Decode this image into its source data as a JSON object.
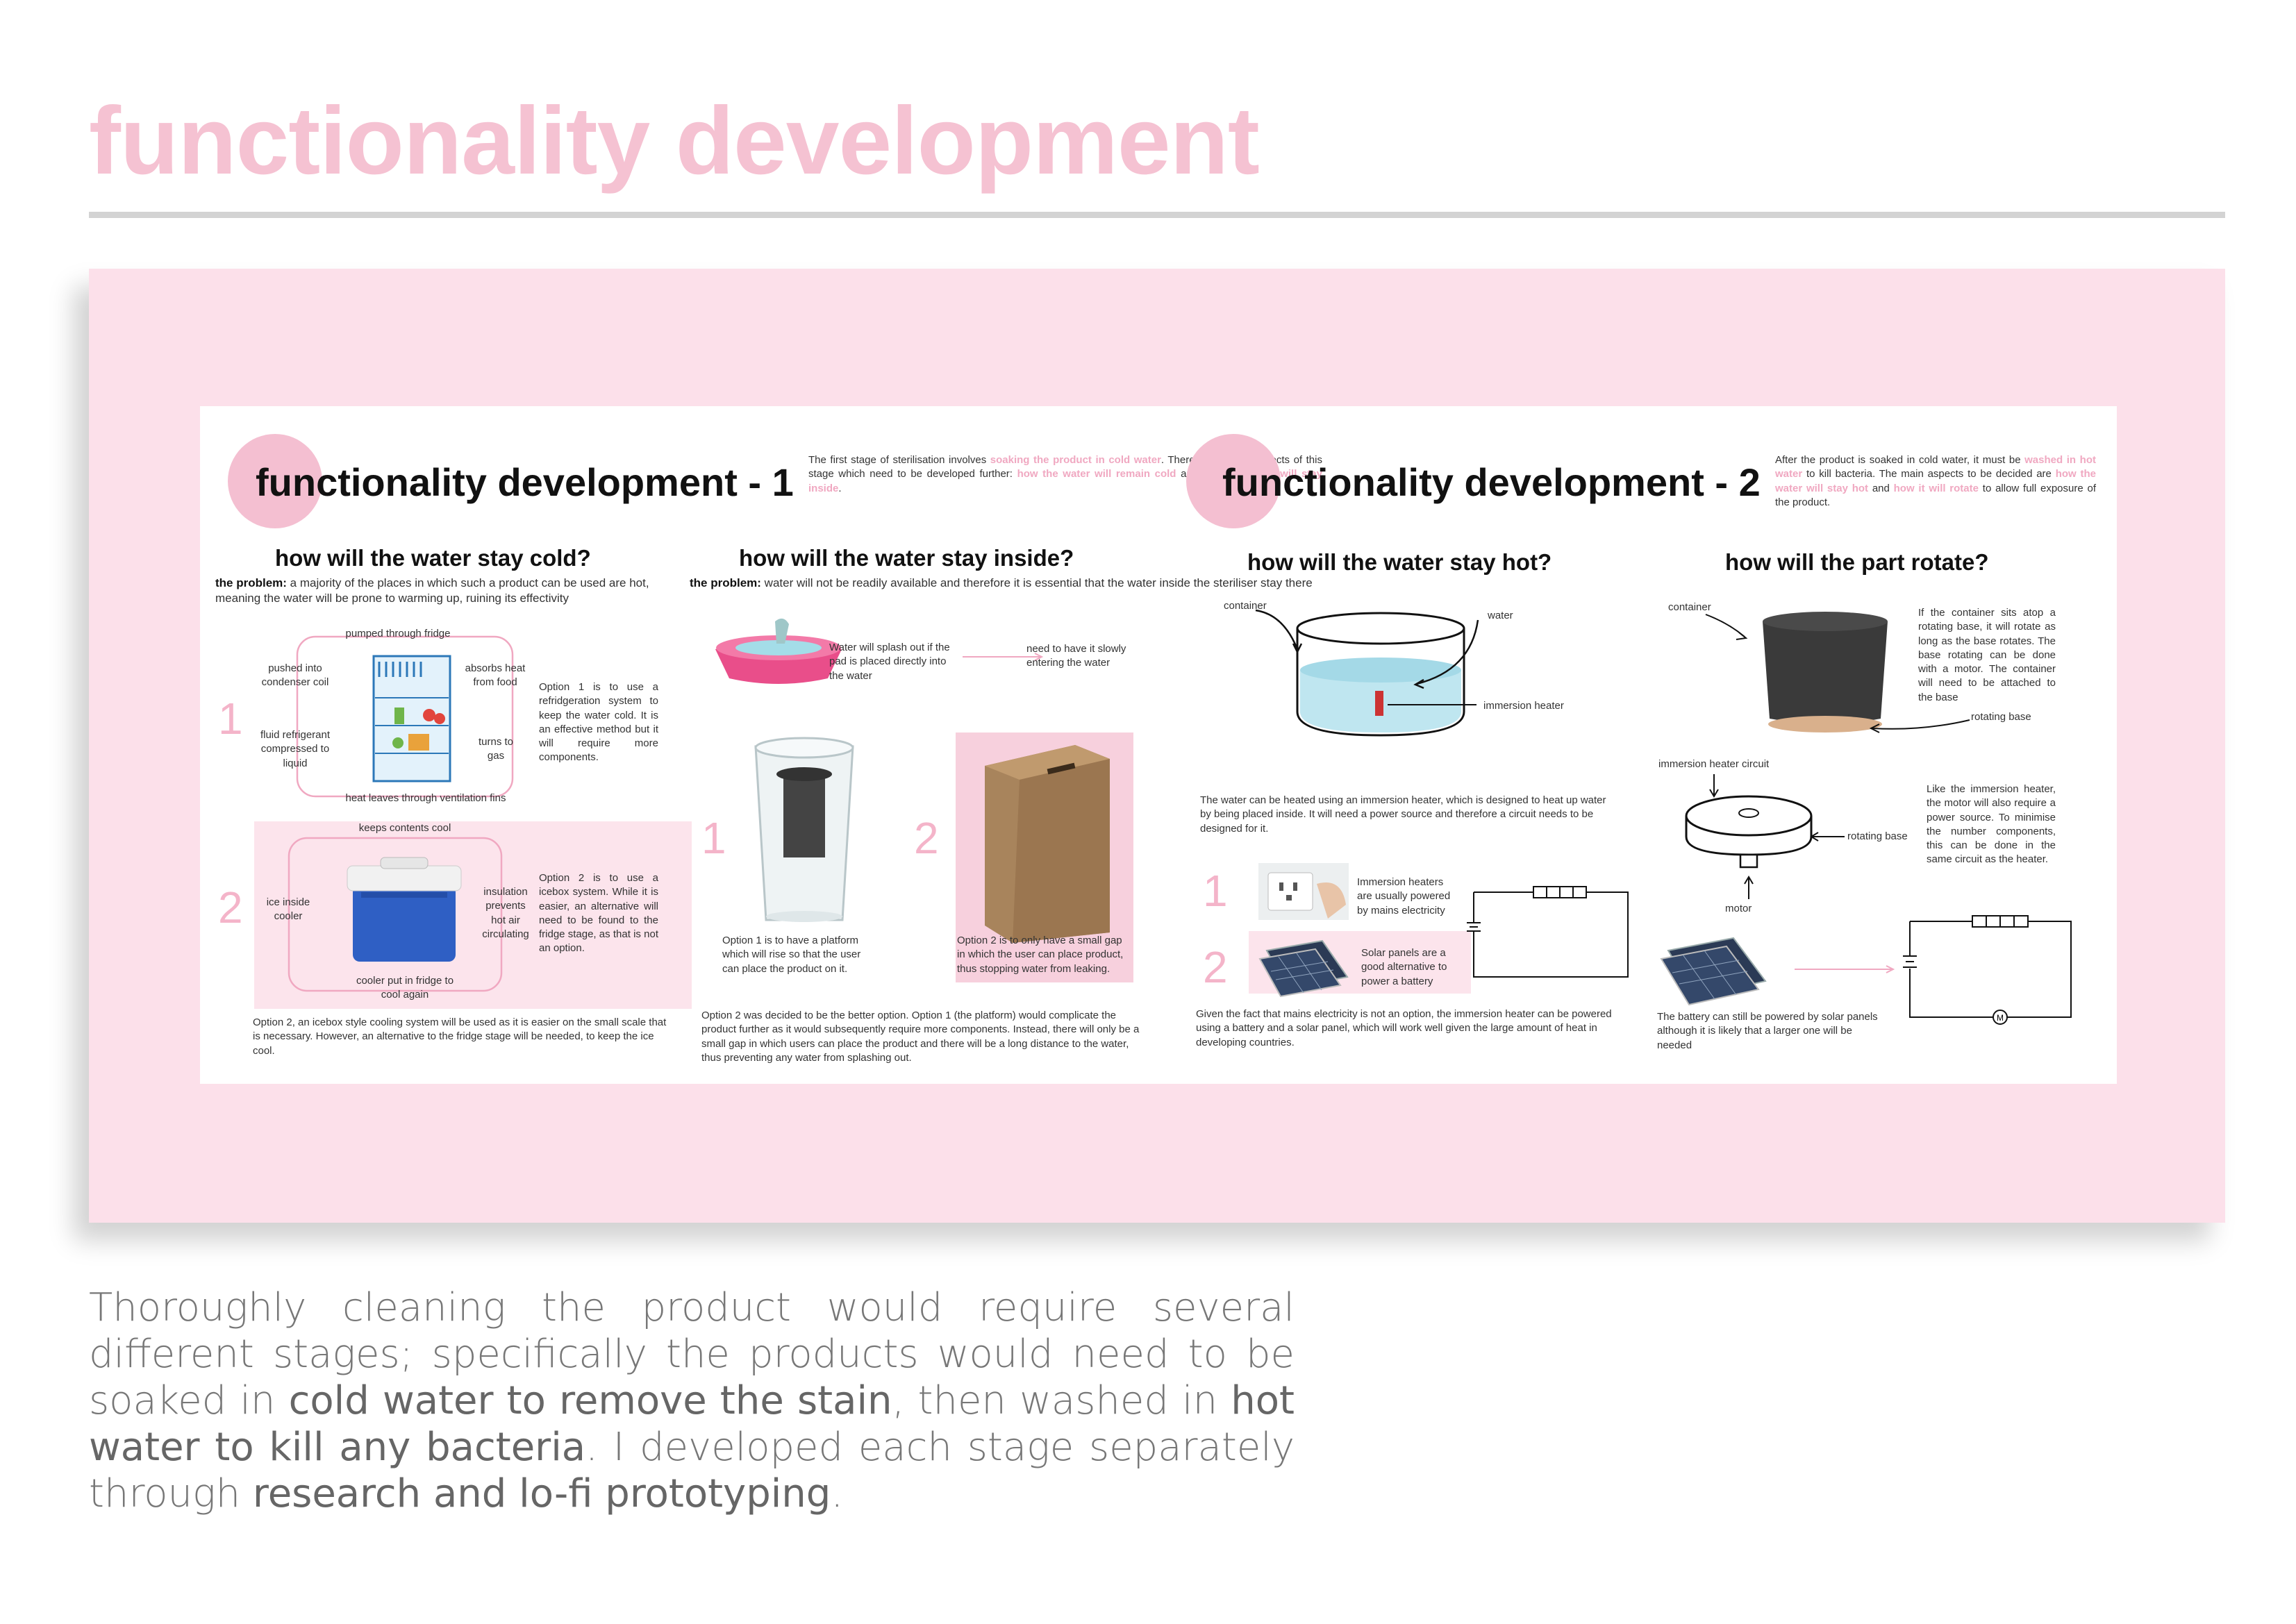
{
  "page": {
    "title": "functionality development",
    "intro": {
      "p1": "Thoroughly cleaning the product would require several different stages; specifically the products would need to be soaked in ",
      "b1": "cold water to remove the stain",
      "p2": ", then washed in ",
      "b2": "hot water to kill any bacteria",
      "p3": ". I developed each stage separately through ",
      "b3": "research and lo-fi prototyping",
      "p4": "."
    }
  },
  "sheet1": {
    "title": "functionality development - 1",
    "intro": {
      "t1": "The first stage of sterilisation involves ",
      "h1": "soaking the product in cold water",
      "t2": ". There are 2 main aspects of this stage which need to be developed further: ",
      "h2": "how the water will remain cold",
      "t3": " and ",
      "h3": "how the water will stay inside",
      "t4": "."
    },
    "cold": {
      "heading": "how will the water stay cold?",
      "problem_label": "the problem:",
      "problem_text": " a majority of the places in which such a product can be used are hot, meaning the water will be prone to warming up, ruining its effectivity",
      "opt1_num": "1",
      "fridge_labels": {
        "pumped": "pumped through fridge",
        "pushed": "pushed into condenser coil",
        "absorbs": "absorbs heat from food",
        "fluid": "fluid refrigerant compressed to liquid",
        "turns": "turns to gas",
        "heat": "heat leaves through ventilation fins"
      },
      "opt1_text": "Option 1 is to use a refridgeration system to keep the water cold. It is an effective method but it will require more components.",
      "opt2_num": "2",
      "cooler_labels": {
        "keeps": "keeps contents cool",
        "ice": "ice inside cooler",
        "insulation": "insulation prevents hot air circulating",
        "cooler_put": "cooler put in fridge to cool again"
      },
      "opt2_text": "Option 2 is to use a icebox system. While it is easier, an alternative will need to be found to the fridge stage, as that is not an option.",
      "conclusion": "Option 2, an icebox style cooling system will be used as it is easier on the small scale that is necessary. However, an alternative to the fridge stage will be needed, to keep the ice cool."
    },
    "inside": {
      "heading": "how will the water stay inside?",
      "problem_label": "the problem:",
      "problem_text": " water will not be readily available and therefore it is essential that the water inside the steriliser stay there",
      "splash": "Water will splash out if the pad is placed directly into the water",
      "slowly": "need to have it slowly entering the water",
      "opt1_num": "1",
      "opt1_text": "Option 1 is to have a platform which will rise so that the user can place the product on it.",
      "opt2_num": "2",
      "opt2_text": "Option 2 is to only have a small gap in which the user can place product, thus stopping water from leaking.",
      "conclusion": "Option 2 was decided to be the better option. Option 1 (the platform) would complicate the product further as it would subsequently require more components. Instead, there will only be a small gap in which users can place the product and there will be a long distance to the water, thus preventing any water from splashing out."
    }
  },
  "sheet2": {
    "title": "functionality development - 2",
    "intro": {
      "t1": "After the product is soaked in cold water, it must be ",
      "h1": "washed in hot water",
      "t2": " to kill bacteria. The main aspects to be decided are ",
      "h2": "how the water will stay hot",
      "t3": " and ",
      "h3": "how it will rotate",
      "t4": " to allow full exposure of the product."
    },
    "hot": {
      "heading": "how will the water stay hot?",
      "container": "container",
      "water": "water",
      "heater": "immersion heater",
      "desc": "The water can be heated using an immersion heater, which is designed to heat up water by being placed inside. It will need a power source and therefore a circuit needs to be designed for it.",
      "opt1_num": "1",
      "opt1_text": "Immersion heaters are usually powered by mains electricity",
      "opt2_num": "2",
      "opt2_text": "Solar panels are a good alternative to power a battery",
      "conclusion": "Given the fact that mains electricity is not an option, the immersion heater can be powered using a battery and a solar panel, which will work well given the large amount of heat in developing countries."
    },
    "rotate": {
      "heading": "how will the part rotate?",
      "container": "container",
      "rotating_base": "rotating base",
      "text1": "If the container sits atop a rotating base, it will rotate as long as the base rotates. The base rotating can be done with a motor. The container will need to be attached to the base",
      "heater_circuit": "immersion heater circuit",
      "rotating_base2": "rotating base",
      "motor": "motor",
      "text2": "Like the immersion heater, the motor will also require a power source. To minimise the number components, this can be done in the same circuit as the heater.",
      "battery": "The battery can still be powered by solar panels although it is likely that a larger one will be needed"
    }
  },
  "colors": {
    "accent_pink": "#f5c2d2",
    "panel_pink": "#fce0ea",
    "text_pink": "#f0a8c1"
  }
}
